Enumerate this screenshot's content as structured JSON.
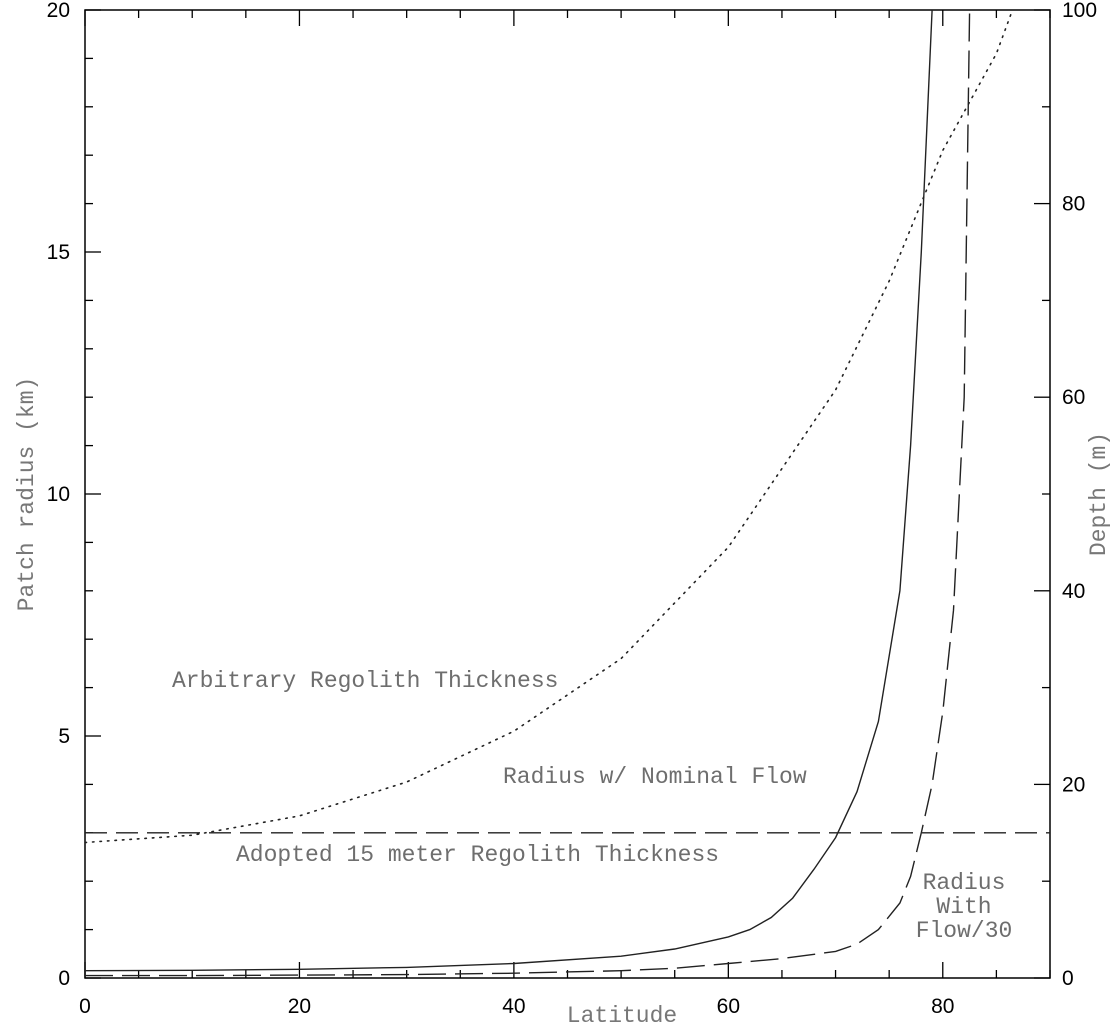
{
  "chart_data": {
    "type": "line",
    "xlabel": "Latitude",
    "ylabel_left": "Patch radius (km)",
    "ylabel_right": "Depth (m)",
    "xlim": [
      0,
      90
    ],
    "ylim_left": [
      0,
      20
    ],
    "ylim_right": [
      0,
      100
    ],
    "x_ticks": [
      0,
      20,
      40,
      60,
      80
    ],
    "y_ticks_left": [
      0,
      5,
      10,
      15,
      20
    ],
    "y_ticks_right": [
      0,
      20,
      40,
      60,
      80,
      100
    ],
    "grid": false,
    "series": [
      {
        "axis": "left",
        "style": "solid",
        "x": [
          0,
          10,
          20,
          30,
          40,
          50,
          55,
          60,
          62,
          64,
          66,
          68,
          70,
          72,
          74,
          76,
          77,
          78,
          79
        ],
        "y": [
          0.15,
          0.16,
          0.18,
          0.22,
          0.3,
          0.45,
          0.6,
          0.85,
          1.0,
          1.25,
          1.65,
          2.25,
          2.9,
          3.85,
          5.3,
          8.0,
          11.0,
          15.0,
          20.0
        ]
      },
      {
        "axis": "left",
        "style": "dashed",
        "x": [
          0,
          10,
          20,
          30,
          40,
          50,
          55,
          60,
          65,
          70,
          72,
          74,
          76,
          77,
          78,
          79,
          80,
          81,
          82,
          82.5
        ],
        "y": [
          0.05,
          0.05,
          0.06,
          0.07,
          0.1,
          0.15,
          0.2,
          0.3,
          0.4,
          0.55,
          0.7,
          1.0,
          1.55,
          2.1,
          3.0,
          4.0,
          5.5,
          7.6,
          12.0,
          20.0
        ]
      },
      {
        "axis": "left",
        "style": "dotted",
        "x": [
          0,
          10,
          20,
          30,
          40,
          50,
          60,
          70,
          75,
          80,
          85,
          86.5
        ],
        "y": [
          2.8,
          2.95,
          3.35,
          4.05,
          5.1,
          6.6,
          8.9,
          12.15,
          14.4,
          17.1,
          19.1,
          20.0
        ]
      },
      {
        "axis": "right",
        "style": "dashed-long",
        "x": [
          0,
          90
        ],
        "y": [
          15,
          15
        ]
      }
    ],
    "annotations": [
      "Arbitrary Regolith Thickness",
      "Radius w/ Nominal Flow",
      "Adopted 15 meter Regolith Thickness",
      "Radius",
      "With",
      "Flow/30"
    ]
  }
}
